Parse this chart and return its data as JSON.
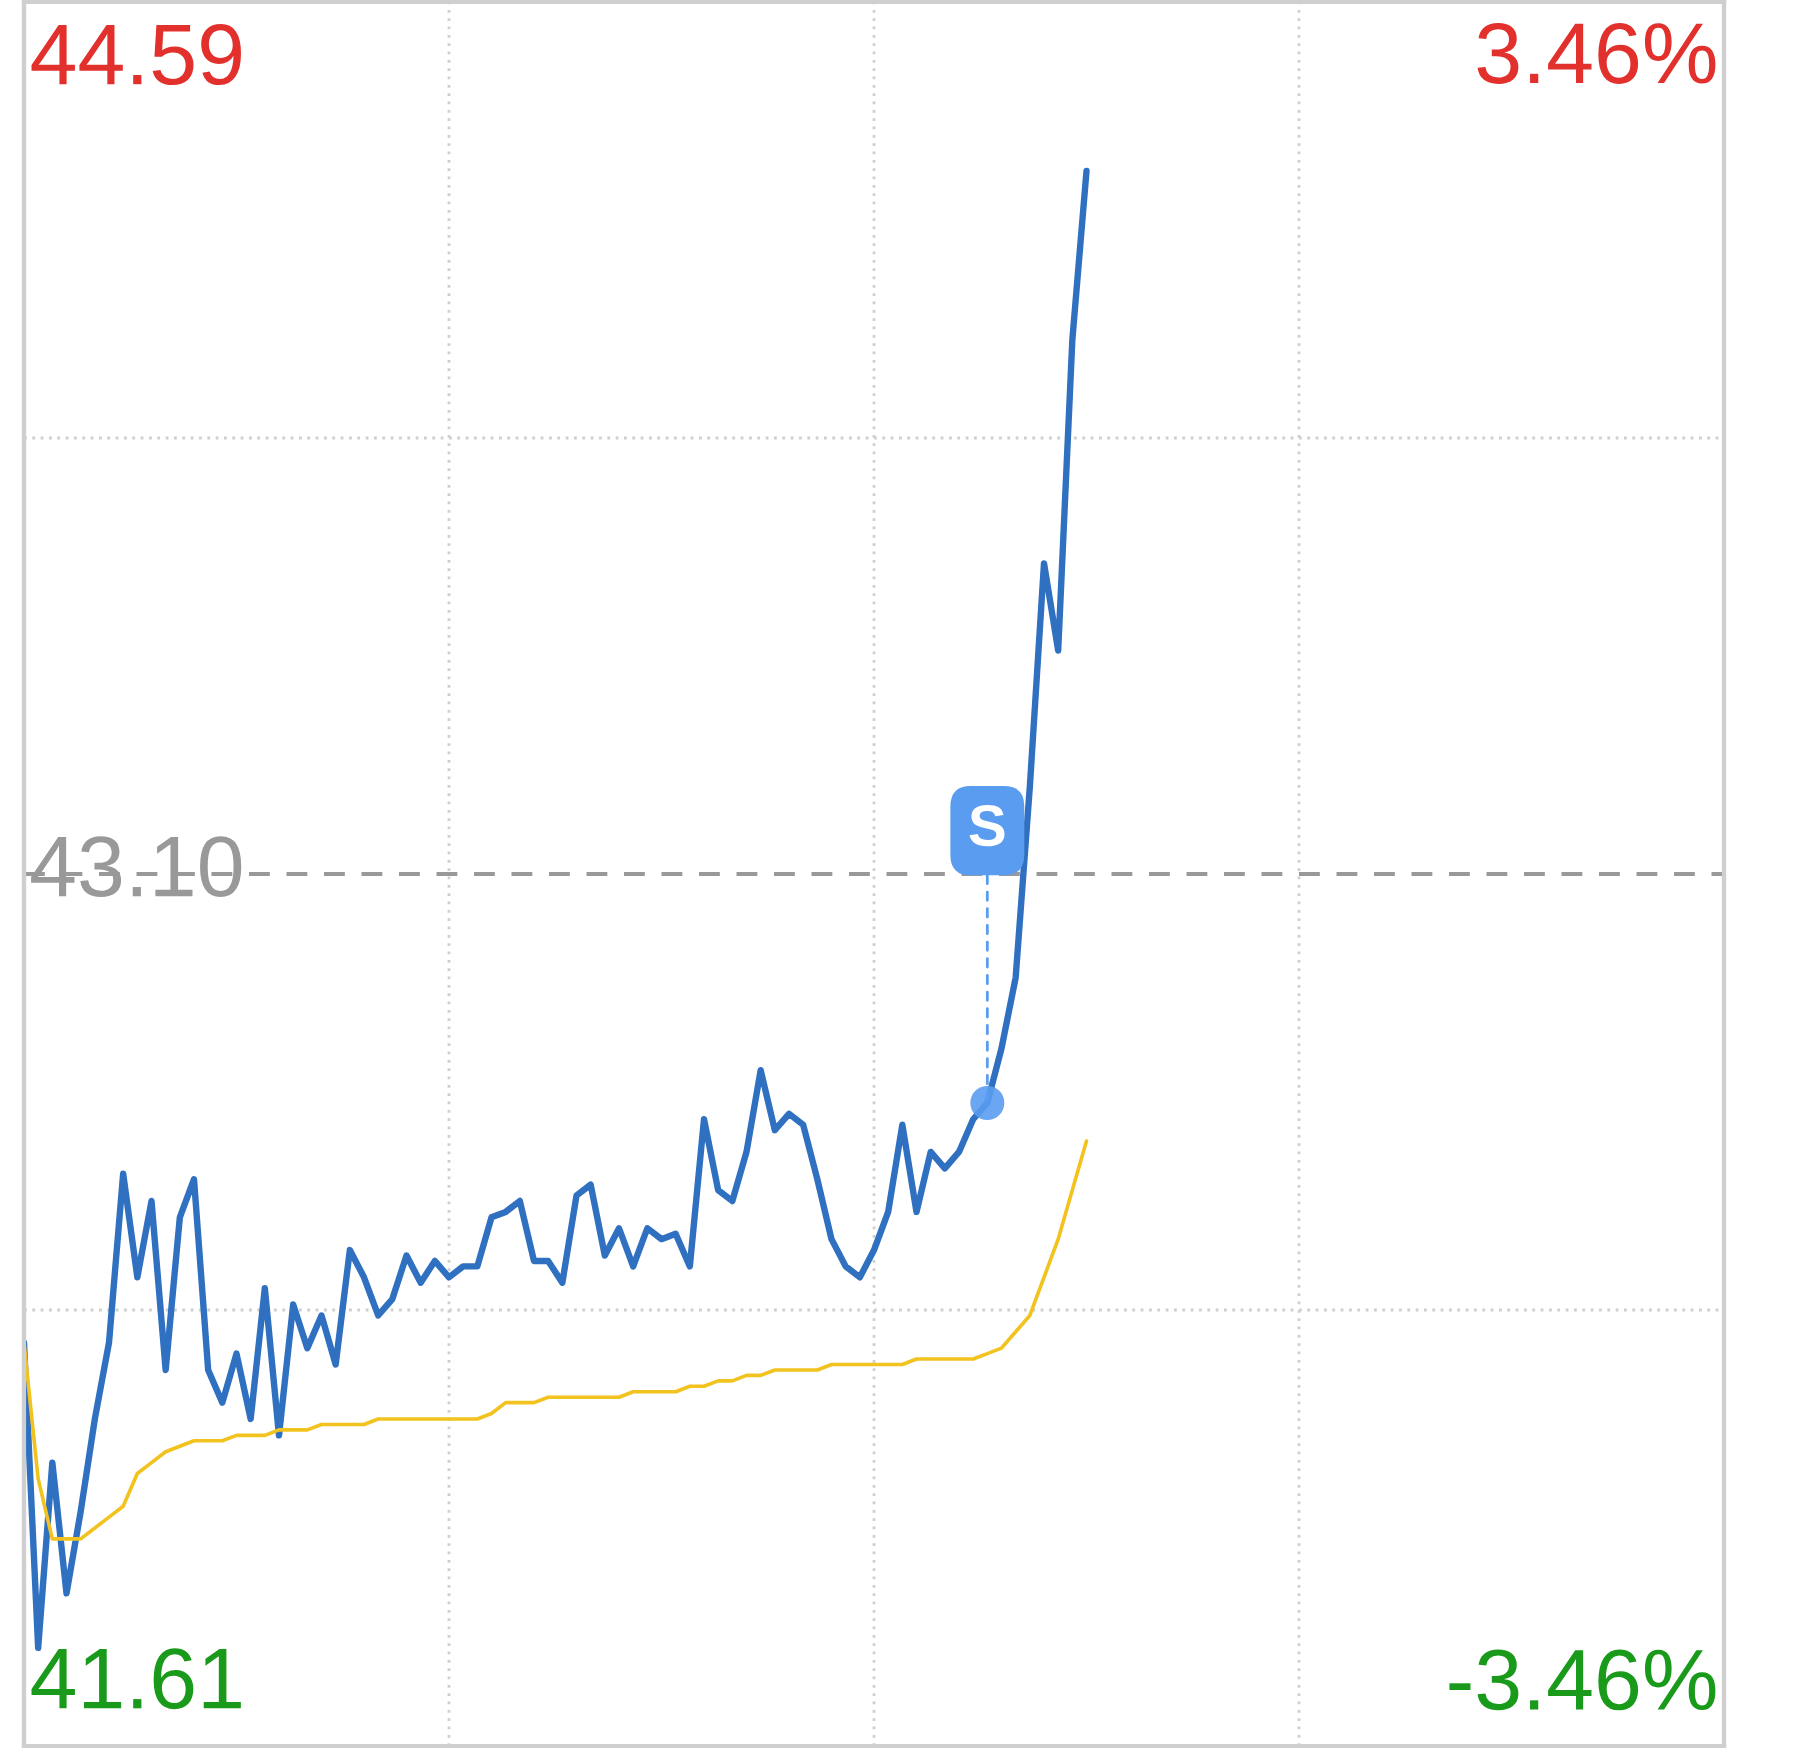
{
  "chart_data": {
    "type": "line",
    "categories": [
      null,
      null,
      null,
      null,
      null,
      null,
      null,
      null,
      null,
      null,
      null,
      null,
      null,
      null,
      null,
      null,
      null,
      null,
      null,
      null,
      null,
      null,
      null,
      null,
      null,
      null,
      null,
      null,
      null,
      null,
      null,
      null,
      null,
      null,
      null,
      null,
      null,
      null,
      null,
      null,
      null,
      null,
      null,
      null,
      null,
      null,
      null,
      null,
      null,
      null,
      null,
      null,
      null,
      null,
      null,
      null,
      null,
      null,
      null,
      null,
      null,
      null,
      null,
      null,
      null,
      null,
      null,
      null,
      null,
      null,
      null,
      null,
      null,
      null,
      null,
      null,
      null,
      null,
      null,
      null,
      null,
      null,
      null,
      null,
      null,
      null,
      null,
      null,
      null,
      null,
      null,
      null,
      null,
      null,
      null,
      null,
      null,
      null,
      null,
      null,
      null,
      null,
      null,
      null,
      null,
      null,
      null,
      null,
      null,
      null,
      null,
      null,
      null,
      null,
      null,
      null,
      null,
      null,
      null,
      null,
      null
    ],
    "series": [
      {
        "color": "#3070c0",
        "values": [
          42.24,
          41.68,
          42.02,
          41.78,
          41.93,
          42.1,
          42.24,
          42.55,
          42.36,
          42.5,
          42.19,
          42.47,
          42.54,
          42.19,
          42.13,
          42.22,
          42.1,
          42.34,
          42.07,
          42.31,
          42.23,
          42.29,
          42.2,
          42.41,
          42.36,
          42.29,
          42.32,
          42.4,
          42.35,
          42.39,
          42.36,
          42.38,
          42.38,
          42.47,
          42.48,
          42.5,
          42.39,
          42.39,
          42.35,
          42.51,
          42.53,
          42.4,
          42.45,
          42.38,
          42.45,
          42.43,
          42.44,
          42.38,
          42.65,
          42.52,
          42.5,
          42.59,
          42.74,
          42.63,
          42.66,
          42.64,
          42.54,
          42.43,
          42.38,
          42.36,
          42.41,
          42.48,
          42.64,
          42.48,
          42.59,
          42.56,
          42.59,
          42.65,
          42.68,
          42.78,
          42.91,
          43.26,
          43.67,
          43.51,
          44.08,
          44.39,
          null,
          null,
          null,
          null,
          null,
          null,
          null,
          null,
          null,
          null,
          null,
          null,
          null,
          null,
          null,
          null,
          null,
          null,
          null,
          null,
          null,
          null,
          null,
          null,
          null,
          null,
          null,
          null,
          null,
          null,
          null,
          null,
          null,
          null,
          null,
          null,
          null,
          null,
          null,
          null,
          null,
          null,
          null,
          null,
          null
        ]
      },
      {
        "color": "#f2c21f",
        "values": [
          42.24,
          41.99,
          41.88,
          41.88,
          41.88,
          41.9,
          41.92,
          41.94,
          42.0,
          42.02,
          42.04,
          42.05,
          42.06,
          42.06,
          42.06,
          42.07,
          42.07,
          42.07,
          42.08,
          42.08,
          42.08,
          42.09,
          42.09,
          42.09,
          42.09,
          42.1,
          42.1,
          42.1,
          42.1,
          42.1,
          42.1,
          42.1,
          42.1,
          42.11,
          42.13,
          42.13,
          42.13,
          42.14,
          42.14,
          42.14,
          42.14,
          42.14,
          42.14,
          42.15,
          42.15,
          42.15,
          42.15,
          42.16,
          42.16,
          42.17,
          42.17,
          42.18,
          42.18,
          42.19,
          42.19,
          42.19,
          42.19,
          42.2,
          42.2,
          42.2,
          42.2,
          42.2,
          42.2,
          42.21,
          42.21,
          42.21,
          42.21,
          42.21,
          42.22,
          42.23,
          42.26,
          42.29,
          42.36,
          42.43,
          42.52,
          42.61,
          null,
          null,
          null,
          null,
          null,
          null,
          null,
          null,
          null,
          null,
          null,
          null,
          null,
          null,
          null,
          null,
          null,
          null,
          null,
          null,
          null,
          null,
          null,
          null,
          null,
          null,
          null,
          null,
          null,
          null,
          null,
          null,
          null,
          null,
          null,
          null,
          null,
          null,
          null,
          null,
          null,
          null,
          null,
          null,
          null
        ]
      },
      {
        "type": "scatter",
        "marker": "circle",
        "color": "#5a9cf0",
        "values": [
          null,
          null,
          null,
          null,
          null,
          null,
          null,
          null,
          null,
          null,
          null,
          null,
          null,
          null,
          null,
          null,
          null,
          null,
          null,
          null,
          null,
          null,
          null,
          null,
          null,
          null,
          null,
          null,
          null,
          null,
          null,
          null,
          null,
          null,
          null,
          null,
          null,
          null,
          null,
          null,
          null,
          null,
          null,
          null,
          null,
          null,
          null,
          null,
          null,
          null,
          null,
          null,
          null,
          null,
          null,
          null,
          null,
          null,
          null,
          null,
          null,
          null,
          null,
          null,
          null,
          null,
          null,
          null,
          42.68,
          null,
          null,
          null,
          null,
          null,
          null,
          null,
          null,
          null,
          null,
          null,
          null,
          null,
          null,
          null,
          null,
          null,
          null,
          null,
          null,
          null,
          null,
          null,
          null,
          null,
          null,
          null,
          null,
          null,
          null,
          null,
          null,
          null,
          null,
          null,
          null,
          null,
          null,
          null,
          null,
          null,
          null,
          null,
          null,
          null,
          null,
          null,
          null,
          null,
          null,
          null,
          null
        ]
      }
    ],
    "ylim": [
      41.5,
      44.7
    ],
    "yticks": [
      {
        "value": 44.59,
        "label": "44.59"
      },
      {
        "value": 43.9,
        "label": null
      },
      {
        "value": 42.3,
        "label": null
      },
      {
        "value": 41.61,
        "label": "41.61"
      }
    ],
    "y2lim": [
      -3.71,
      3.71
    ],
    "y2ticks": [
      {
        "value": 3.46,
        "label": "3.46%"
      },
      {
        "value": -3.46,
        "label": "-3.46%"
      }
    ],
    "ref_lines": [
      {
        "axis": "y",
        "value": 43.1,
        "label": "43.10",
        "color": "#999999",
        "line_style": "dashed"
      }
    ],
    "annotations": [
      "S"
    ],
    "grid": true,
    "line_style": "solid"
  }
}
